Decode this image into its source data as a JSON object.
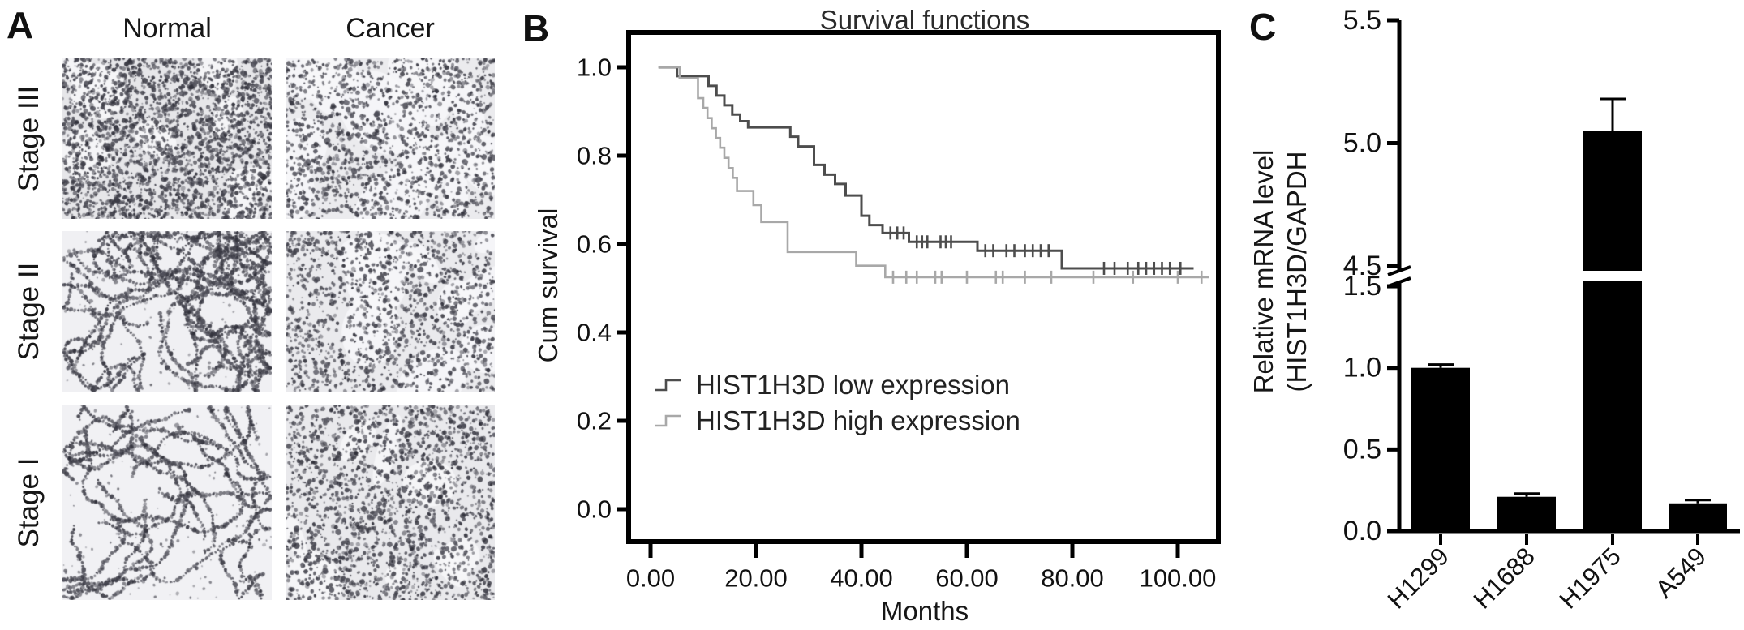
{
  "figure": {
    "type": "multi-panel scientific figure",
    "background": "#ffffff",
    "text_color": "#1a1a1a"
  },
  "panelA": {
    "label": "A",
    "columns": [
      "Normal",
      "Cancer"
    ],
    "rows": [
      "Stage III",
      "Stage II",
      "Stage I"
    ],
    "cells": [
      {
        "row": "Stage III",
        "column": "Normal",
        "appearance": "dense nuclear-stained tissue",
        "pattern": "dense",
        "dots": 2600,
        "strands": 0,
        "patches": 8,
        "patch_r": 34,
        "bg": "#e6e6e9",
        "seed": 11
      },
      {
        "row": "Stage III",
        "column": "Cancer",
        "appearance": "dense tissue with pale patches",
        "pattern": "dense",
        "dots": 1500,
        "strands": 0,
        "patches": 14,
        "patch_r": 52,
        "bg": "#ebebee",
        "seed": 12
      },
      {
        "row": "Stage II",
        "column": "Normal",
        "appearance": "open alveolar lung tissue",
        "pattern": "alveolar",
        "dots": 0,
        "strands": 26,
        "patches": 0,
        "patch_r": 0,
        "bg": "#f0f0f3",
        "seed": 21
      },
      {
        "row": "Stage II",
        "column": "Cancer",
        "appearance": "dense cellular tumor tissue",
        "pattern": "dense",
        "dots": 1400,
        "strands": 0,
        "patches": 10,
        "patch_r": 40,
        "bg": "#eaeaed",
        "seed": 22
      },
      {
        "row": "Stage I",
        "column": "Normal",
        "appearance": "very sparse alveolar tissue",
        "pattern": "alveolar",
        "dots": 0,
        "strands": 17,
        "patches": 0,
        "patch_r": 0,
        "bg": "#f1f1f4",
        "seed": 31
      },
      {
        "row": "Stage I",
        "column": "Cancer",
        "appearance": "dense cellular tumor tissue",
        "pattern": "dense",
        "dots": 2000,
        "strands": 0,
        "patches": 8,
        "patch_r": 36,
        "bg": "#e9e9ec",
        "seed": 32
      }
    ]
  },
  "panelB": {
    "label": "B"
  },
  "panelC": {
    "label": "C"
  },
  "chart_data": [
    {
      "type": "line",
      "subtype": "kaplan-meier-step",
      "title": "Survival functions",
      "xlabel": "Months",
      "ylabel": "Cum survival",
      "xlim": [
        -4,
        108
      ],
      "ylim": [
        -0.07,
        1.08
      ],
      "grid": false,
      "legend_position": "inside-center-left",
      "x_ticks": {
        "values": [
          0,
          20,
          40,
          60,
          80,
          100
        ],
        "labels": [
          "0.00",
          "20.00",
          "40.00",
          "60.00",
          "80.00",
          "100.00"
        ]
      },
      "y_ticks": {
        "values": [
          1.0,
          0.8,
          0.6,
          0.4,
          0.2,
          0.0
        ],
        "labels": [
          "1.0",
          "0.8",
          "0.6",
          "0.4",
          "0.2",
          "0.0"
        ]
      },
      "series": [
        {
          "name": "HIST1H3D low expression",
          "color": "#4d4d4d",
          "steps": [
            [
              1.5,
              1.0
            ],
            [
              5,
              1.0
            ],
            [
              5,
              0.98
            ],
            [
              11,
              0.98
            ],
            [
              11,
              0.958
            ],
            [
              12.5,
              0.958
            ],
            [
              12.5,
              0.936
            ],
            [
              14,
              0.936
            ],
            [
              14,
              0.914
            ],
            [
              15.5,
              0.914
            ],
            [
              15.5,
              0.893
            ],
            [
              17,
              0.893
            ],
            [
              17,
              0.878
            ],
            [
              18.5,
              0.878
            ],
            [
              18.5,
              0.864
            ],
            [
              26.5,
              0.864
            ],
            [
              26.5,
              0.843
            ],
            [
              28,
              0.843
            ],
            [
              28,
              0.821
            ],
            [
              31,
              0.821
            ],
            [
              31,
              0.779
            ],
            [
              33,
              0.779
            ],
            [
              33,
              0.757
            ],
            [
              35,
              0.757
            ],
            [
              35,
              0.736
            ],
            [
              37,
              0.736
            ],
            [
              37,
              0.71
            ],
            [
              40,
              0.71
            ],
            [
              40,
              0.664
            ],
            [
              41.5,
              0.664
            ],
            [
              41.5,
              0.643
            ],
            [
              44,
              0.643
            ],
            [
              44,
              0.625
            ],
            [
              49,
              0.625
            ],
            [
              49,
              0.605
            ],
            [
              62,
              0.605
            ],
            [
              62,
              0.585
            ],
            [
              78,
              0.585
            ],
            [
              78,
              0.545
            ],
            [
              103,
              0.545
            ]
          ],
          "censors": [
            [
              45.5,
              0.625
            ],
            [
              46.8,
              0.625
            ],
            [
              48,
              0.625
            ],
            [
              50.5,
              0.605
            ],
            [
              51.5,
              0.605
            ],
            [
              52.5,
              0.605
            ],
            [
              55,
              0.605
            ],
            [
              56,
              0.605
            ],
            [
              57,
              0.605
            ],
            [
              63.5,
              0.585
            ],
            [
              65,
              0.585
            ],
            [
              67.5,
              0.585
            ],
            [
              69,
              0.585
            ],
            [
              71,
              0.585
            ],
            [
              72.5,
              0.585
            ],
            [
              74,
              0.585
            ],
            [
              75.5,
              0.585
            ],
            [
              86,
              0.545
            ],
            [
              88,
              0.545
            ],
            [
              90.5,
              0.545
            ],
            [
              92.5,
              0.545
            ],
            [
              94,
              0.545
            ],
            [
              95.5,
              0.545
            ],
            [
              97,
              0.545
            ],
            [
              98.5,
              0.545
            ],
            [
              100.5,
              0.545
            ]
          ]
        },
        {
          "name": "HIST1H3D high expression",
          "color": "#a8a8a8",
          "steps": [
            [
              1.5,
              1.0
            ],
            [
              5.5,
              1.0
            ],
            [
              5.5,
              0.975
            ],
            [
              9,
              0.975
            ],
            [
              9,
              0.93
            ],
            [
              10,
              0.93
            ],
            [
              10,
              0.908
            ],
            [
              10.8,
              0.908
            ],
            [
              10.8,
              0.885
            ],
            [
              11.6,
              0.885
            ],
            [
              11.6,
              0.862
            ],
            [
              12.4,
              0.862
            ],
            [
              12.4,
              0.84
            ],
            [
              13.2,
              0.84
            ],
            [
              13.2,
              0.818
            ],
            [
              14,
              0.818
            ],
            [
              14,
              0.795
            ],
            [
              14.8,
              0.795
            ],
            [
              14.8,
              0.772
            ],
            [
              15.6,
              0.772
            ],
            [
              15.6,
              0.75
            ],
            [
              16.4,
              0.75
            ],
            [
              16.4,
              0.72
            ],
            [
              19.5,
              0.72
            ],
            [
              19.5,
              0.688
            ],
            [
              21,
              0.688
            ],
            [
              21,
              0.65
            ],
            [
              26,
              0.65
            ],
            [
              26,
              0.582
            ],
            [
              39,
              0.582
            ],
            [
              39,
              0.551
            ],
            [
              44.5,
              0.551
            ],
            [
              44.5,
              0.525
            ],
            [
              106,
              0.525
            ]
          ],
          "censors": [
            [
              46,
              0.525
            ],
            [
              48.5,
              0.525
            ],
            [
              50.5,
              0.525
            ],
            [
              54,
              0.525
            ],
            [
              55.2,
              0.525
            ],
            [
              60,
              0.525
            ],
            [
              65.5,
              0.525
            ],
            [
              66.8,
              0.525
            ],
            [
              71,
              0.525
            ],
            [
              76,
              0.525
            ],
            [
              84,
              0.525
            ],
            [
              91.5,
              0.525
            ],
            [
              100,
              0.525
            ],
            [
              104.5,
              0.525
            ]
          ]
        }
      ]
    },
    {
      "type": "bar",
      "categories": [
        "H1299",
        "H1688",
        "H1975",
        "A549"
      ],
      "values": [
        1.0,
        0.21,
        5.05,
        0.17
      ],
      "errors": [
        0.02,
        0.02,
        0.13,
        0.02
      ],
      "bar_color": "#000000",
      "ylabel_line1": "Relative mRNA level",
      "ylabel_line2": "(HIST1H3D/GAPDH",
      "axis_break": {
        "lower_max": 1.5,
        "upper_min": 4.5
      },
      "y_ticks_lower": {
        "values": [
          0.0,
          0.5,
          1.0,
          1.5
        ],
        "labels": [
          "0.0",
          "0.5",
          "1.0",
          "1.5"
        ]
      },
      "y_ticks_upper": {
        "values": [
          4.5,
          5.0,
          5.5
        ],
        "labels": [
          "4.5",
          "5.0",
          "5.5"
        ]
      },
      "grid": false
    }
  ]
}
